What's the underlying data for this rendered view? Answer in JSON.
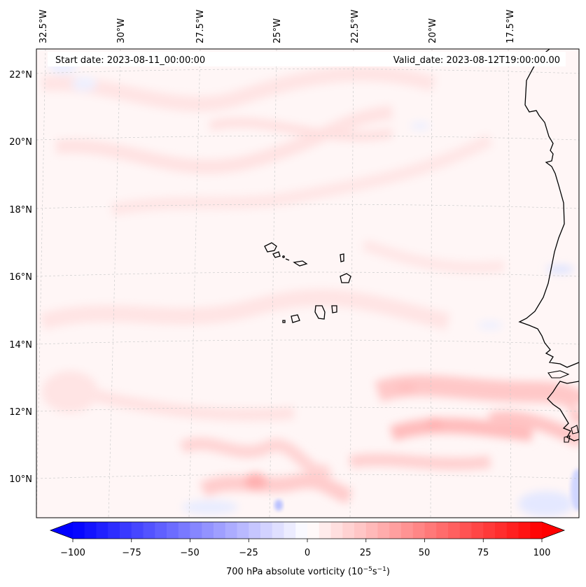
{
  "header": {
    "start_date": "Start date: 2023-08-11_00:00:00",
    "valid_date": "Valid_date: 2023-08-12T19:00:00.00"
  },
  "map": {
    "lon_labels": [
      "32.5°W",
      "30°W",
      "27.5°W",
      "25°W",
      "22.5°W",
      "20°W",
      "17.5°W"
    ],
    "lat_labels": [
      "22°N",
      "20°N",
      "18°N",
      "16°N",
      "14°N",
      "12°N",
      "10°N"
    ]
  },
  "colorbar": {
    "label": "700 hPa absolute vorticity (10",
    "label_exp1": "−5",
    "label_mid": "s",
    "label_exp2": "−1",
    "label_end": ")",
    "ticks": [
      "−100",
      "−75",
      "−50",
      "−25",
      "0",
      "25",
      "50",
      "75",
      "100"
    ],
    "min_color": "#0000ff",
    "mid_color": "#ffffff",
    "max_color": "#ff0000"
  }
}
